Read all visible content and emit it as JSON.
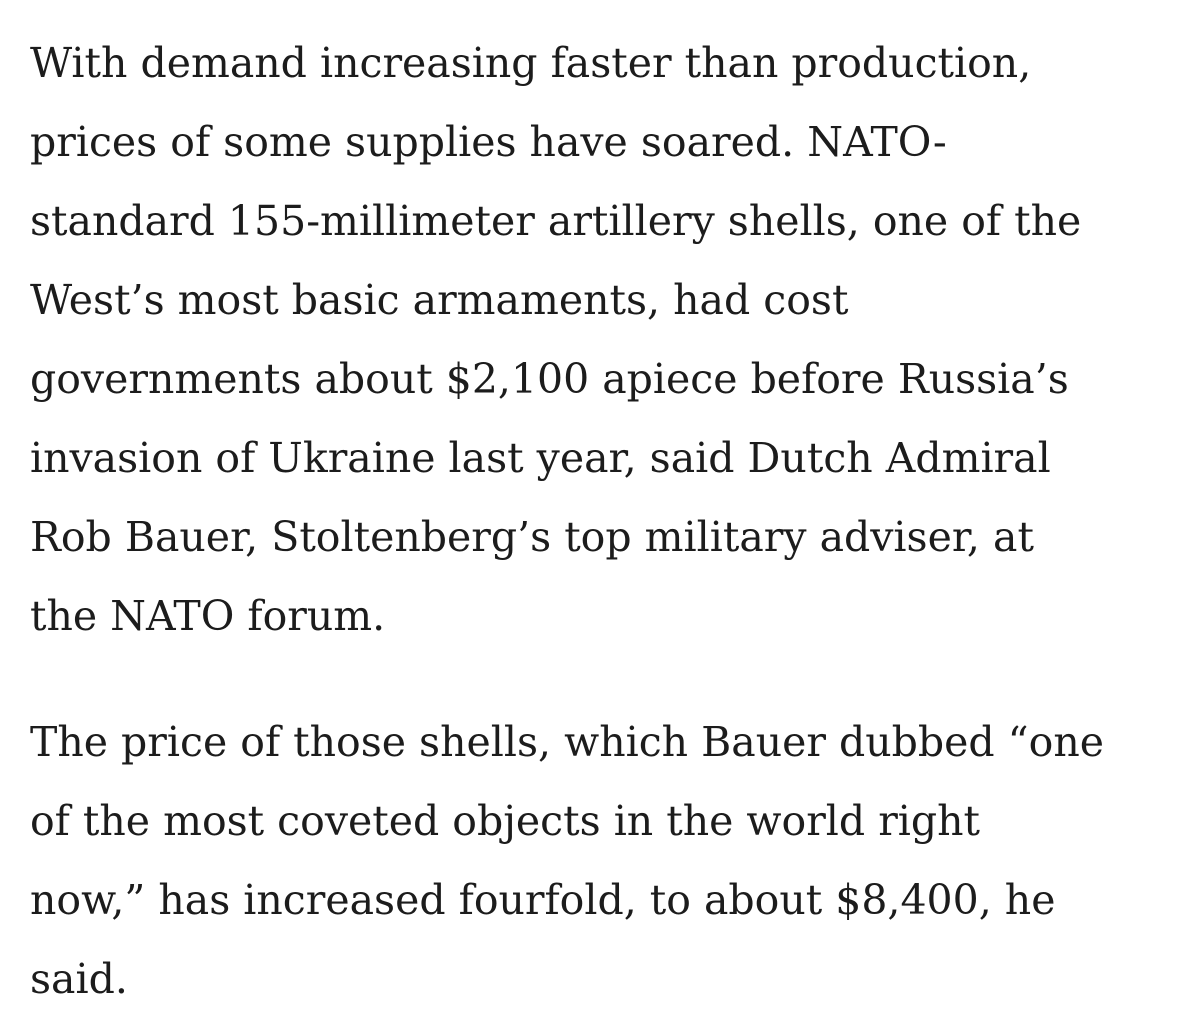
{
  "paragraphs": [
    {
      "lines": [
        "With demand increasing faster than production,",
        "prices of some supplies have soared. NATO-",
        "standard 155-millimeter artillery shells, one of the",
        "West’s most basic armaments, had cost",
        "governments about $2,100 apiece before Russia’s",
        "invasion of Ukraine last year, said Dutch Admiral",
        "Rob Bauer, Stoltenberg’s top military adviser, at",
        "the NATO forum."
      ]
    },
    {
      "lines": [
        "The price of those shells, which Bauer dubbed “one",
        "of the most coveted objects in the world right",
        "now,” has increased fourfold, to about $8,400, he",
        "said."
      ]
    }
  ]
}
